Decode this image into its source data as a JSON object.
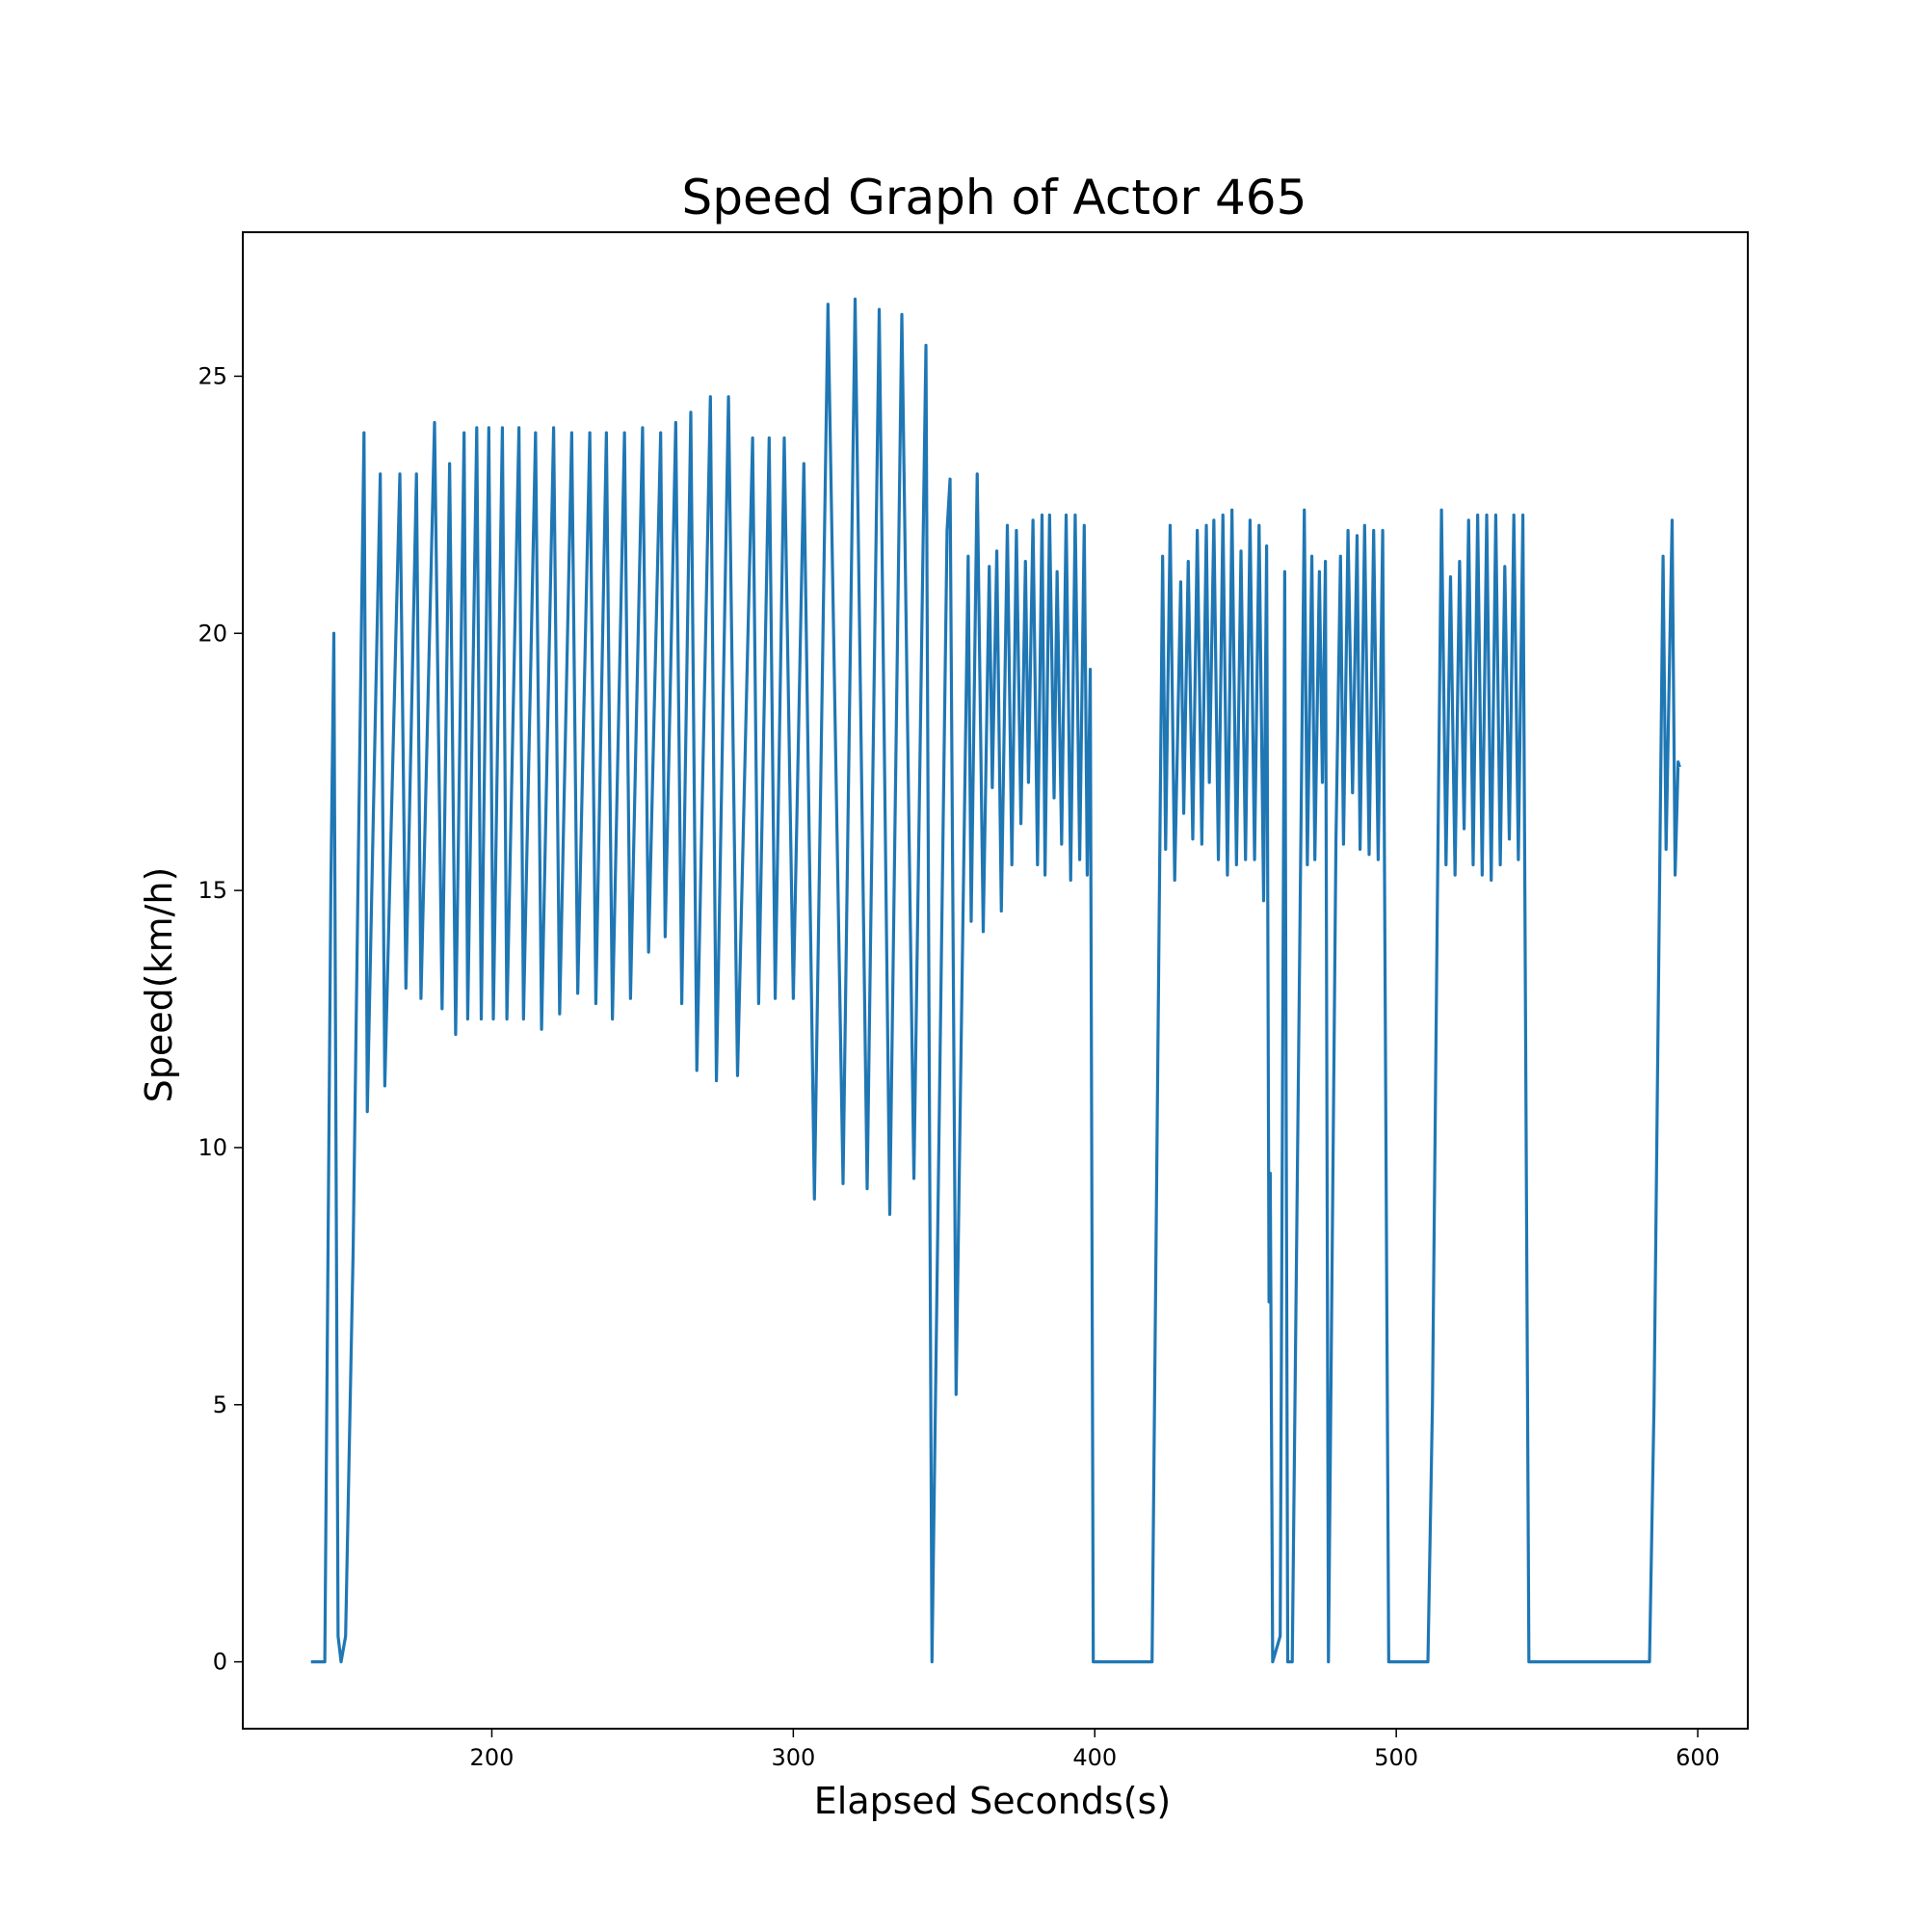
{
  "chart_data": {
    "type": "line",
    "title": "Speed Graph of Actor 465",
    "xlabel": "Elapsed Seconds(s)",
    "ylabel": "Speed(km/h)",
    "xlim": [
      117.4,
      616.6
    ],
    "ylim": [
      -1.3,
      27.8
    ],
    "xticks": [
      {
        "value": 200,
        "label": "200"
      },
      {
        "value": 300,
        "label": "300"
      },
      {
        "value": 400,
        "label": "400"
      },
      {
        "value": 500,
        "label": "500"
      },
      {
        "value": 600,
        "label": "600"
      }
    ],
    "yticks": [
      {
        "value": 0,
        "label": "0"
      },
      {
        "value": 5,
        "label": "5"
      },
      {
        "value": 10,
        "label": "10"
      },
      {
        "value": 15,
        "label": "15"
      },
      {
        "value": 20,
        "label": "20"
      },
      {
        "value": 25,
        "label": "25"
      }
    ],
    "grid": false,
    "legend": "none",
    "line_color": "#1f77b4",
    "series": [
      {
        "values": [
          [
            140.0,
            0.0
          ],
          [
            141.5,
            0.0
          ],
          [
            144.6,
            0.0
          ],
          [
            146.6,
            15.0
          ],
          [
            147.6,
            20.0
          ],
          [
            149.0,
            0.5
          ],
          [
            150.0,
            0.0
          ],
          [
            151.5,
            0.5
          ],
          [
            154.0,
            8.0
          ],
          [
            157.6,
            23.9
          ],
          [
            158.7,
            10.7
          ],
          [
            163.0,
            23.1
          ],
          [
            164.5,
            11.2
          ],
          [
            169.5,
            23.1
          ],
          [
            171.5,
            13.1
          ],
          [
            175.0,
            23.1
          ],
          [
            176.5,
            12.9
          ],
          [
            181.0,
            24.1
          ],
          [
            183.5,
            12.7
          ],
          [
            186.0,
            23.3
          ],
          [
            188.0,
            12.2
          ],
          [
            190.8,
            23.9
          ],
          [
            192.0,
            12.5
          ],
          [
            195.0,
            24.0
          ],
          [
            196.5,
            12.5
          ],
          [
            199.0,
            24.0
          ],
          [
            200.5,
            12.5
          ],
          [
            203.5,
            24.0
          ],
          [
            205.0,
            12.5
          ],
          [
            209.0,
            24.0
          ],
          [
            210.5,
            12.5
          ],
          [
            214.5,
            23.9
          ],
          [
            216.5,
            12.3
          ],
          [
            220.5,
            24.0
          ],
          [
            222.5,
            12.6
          ],
          [
            226.5,
            23.9
          ],
          [
            228.5,
            13.0
          ],
          [
            232.5,
            23.9
          ],
          [
            234.5,
            12.8
          ],
          [
            238.0,
            23.9
          ],
          [
            240.0,
            12.5
          ],
          [
            244.0,
            23.9
          ],
          [
            246.0,
            12.9
          ],
          [
            250.0,
            24.0
          ],
          [
            252.0,
            13.8
          ],
          [
            256.0,
            23.9
          ],
          [
            257.5,
            14.1
          ],
          [
            261.0,
            24.1
          ],
          [
            263.0,
            12.8
          ],
          [
            266.0,
            24.3
          ],
          [
            268.0,
            11.5
          ],
          [
            272.5,
            24.6
          ],
          [
            274.5,
            11.3
          ],
          [
            278.5,
            24.6
          ],
          [
            281.5,
            11.4
          ],
          [
            286.5,
            23.8
          ],
          [
            288.5,
            12.8
          ],
          [
            292.0,
            23.8
          ],
          [
            294.0,
            12.9
          ],
          [
            297.0,
            23.8
          ],
          [
            300.0,
            12.9
          ],
          [
            303.5,
            23.3
          ],
          [
            307.0,
            9.0
          ],
          [
            311.5,
            26.4
          ],
          [
            316.5,
            9.3
          ],
          [
            320.5,
            26.5
          ],
          [
            324.5,
            9.2
          ],
          [
            328.5,
            26.3
          ],
          [
            332.0,
            8.7
          ],
          [
            336.0,
            26.2
          ],
          [
            340.0,
            9.4
          ],
          [
            344.0,
            25.6
          ],
          [
            346.0,
            0.0
          ],
          [
            351.0,
            22.0
          ],
          [
            352.0,
            23.0
          ],
          [
            354.0,
            5.2
          ],
          [
            358.0,
            21.5
          ],
          [
            359.0,
            14.4
          ],
          [
            361.0,
            23.1
          ],
          [
            363.0,
            14.2
          ],
          [
            365.0,
            21.3
          ],
          [
            366.0,
            17.0
          ],
          [
            367.5,
            21.6
          ],
          [
            369.0,
            14.6
          ],
          [
            371.0,
            22.1
          ],
          [
            372.5,
            15.5
          ],
          [
            374.0,
            22.0
          ],
          [
            375.5,
            16.3
          ],
          [
            377.0,
            21.4
          ],
          [
            378.0,
            17.1
          ],
          [
            379.5,
            22.2
          ],
          [
            381.0,
            15.5
          ],
          [
            382.5,
            22.3
          ],
          [
            383.5,
            15.3
          ],
          [
            385.0,
            22.3
          ],
          [
            386.5,
            16.8
          ],
          [
            387.5,
            21.2
          ],
          [
            389.0,
            15.9
          ],
          [
            390.5,
            22.3
          ],
          [
            392.0,
            15.2
          ],
          [
            393.5,
            22.3
          ],
          [
            395.0,
            15.6
          ],
          [
            396.5,
            22.1
          ],
          [
            397.5,
            15.3
          ],
          [
            398.5,
            19.3
          ],
          [
            399.5,
            0.0
          ],
          [
            404.0,
            0.0
          ],
          [
            419.0,
            0.0
          ],
          [
            422.5,
            21.5
          ],
          [
            423.5,
            15.8
          ],
          [
            425.0,
            22.1
          ],
          [
            426.5,
            15.2
          ],
          [
            428.5,
            21.0
          ],
          [
            429.5,
            16.5
          ],
          [
            431.0,
            21.4
          ],
          [
            432.5,
            16.0
          ],
          [
            434.0,
            22.0
          ],
          [
            435.5,
            15.9
          ],
          [
            437.0,
            22.1
          ],
          [
            438.0,
            17.1
          ],
          [
            439.5,
            22.2
          ],
          [
            441.0,
            15.6
          ],
          [
            442.5,
            22.3
          ],
          [
            444.0,
            15.3
          ],
          [
            445.5,
            22.4
          ],
          [
            447.0,
            15.5
          ],
          [
            448.5,
            21.6
          ],
          [
            450.0,
            15.6
          ],
          [
            451.5,
            22.2
          ],
          [
            453.0,
            15.6
          ],
          [
            454.5,
            22.1
          ],
          [
            456.0,
            14.8
          ],
          [
            457.0,
            21.7
          ],
          [
            457.8,
            7.0
          ],
          [
            458.2,
            9.5
          ],
          [
            459.0,
            0.0
          ],
          [
            461.5,
            0.5
          ],
          [
            463.0,
            21.2
          ],
          [
            464.0,
            0.0
          ],
          [
            465.5,
            0.0
          ],
          [
            469.5,
            22.4
          ],
          [
            470.5,
            15.5
          ],
          [
            472.0,
            21.5
          ],
          [
            473.0,
            15.6
          ],
          [
            474.5,
            21.2
          ],
          [
            475.5,
            17.1
          ],
          [
            476.5,
            21.4
          ],
          [
            477.5,
            0.0
          ],
          [
            480.0,
            16.0
          ],
          [
            481.5,
            21.5
          ],
          [
            482.5,
            15.9
          ],
          [
            484.0,
            22.0
          ],
          [
            485.5,
            16.9
          ],
          [
            487.0,
            21.9
          ],
          [
            488.0,
            15.8
          ],
          [
            489.5,
            22.1
          ],
          [
            491.0,
            15.7
          ],
          [
            492.5,
            22.0
          ],
          [
            494.0,
            15.6
          ],
          [
            495.5,
            22.0
          ],
          [
            497.5,
            0.0
          ],
          [
            505.0,
            0.0
          ],
          [
            510.5,
            0.0
          ],
          [
            512.0,
            5.0
          ],
          [
            513.5,
            14.0
          ],
          [
            515.0,
            22.4
          ],
          [
            516.5,
            15.5
          ],
          [
            518.0,
            21.1
          ],
          [
            519.5,
            15.3
          ],
          [
            521.0,
            21.4
          ],
          [
            522.5,
            16.2
          ],
          [
            524.0,
            22.2
          ],
          [
            525.5,
            15.5
          ],
          [
            527.0,
            22.3
          ],
          [
            528.5,
            15.3
          ],
          [
            530.0,
            22.3
          ],
          [
            531.5,
            15.2
          ],
          [
            533.0,
            22.3
          ],
          [
            534.5,
            15.5
          ],
          [
            536.0,
            21.3
          ],
          [
            537.5,
            16.0
          ],
          [
            539.0,
            22.3
          ],
          [
            540.5,
            15.6
          ],
          [
            542.0,
            22.3
          ],
          [
            544.0,
            0.0
          ],
          [
            550.0,
            0.0
          ],
          [
            584.0,
            0.0
          ],
          [
            585.5,
            5.0
          ],
          [
            588.5,
            21.5
          ],
          [
            589.5,
            15.8
          ],
          [
            591.5,
            22.2
          ],
          [
            592.5,
            15.3
          ],
          [
            593.5,
            17.5
          ],
          [
            594.0,
            17.4
          ]
        ]
      }
    ]
  }
}
